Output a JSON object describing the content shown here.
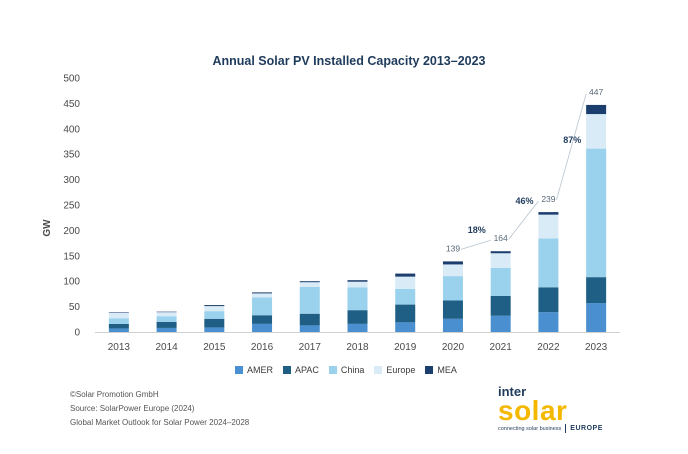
{
  "chart_data": {
    "type": "bar",
    "stacked": true,
    "title": "Annual Solar PV Installed Capacity 2013–2023",
    "xlabel": "",
    "ylabel": "GW",
    "ylim": [
      0,
      500
    ],
    "yticks": [
      0,
      50,
      100,
      150,
      200,
      250,
      300,
      350,
      400,
      450,
      500
    ],
    "categories": [
      "2013",
      "2014",
      "2015",
      "2016",
      "2017",
      "2018",
      "2019",
      "2020",
      "2021",
      "2022",
      "2023"
    ],
    "series": [
      {
        "name": "AMER",
        "color": "#4a90d0",
        "values": [
          7,
          8,
          9,
          16,
          13,
          16,
          19,
          26,
          32,
          39,
          57
        ]
      },
      {
        "name": "APAC",
        "color": "#1f5f85",
        "values": [
          9,
          12,
          17,
          17,
          23,
          27,
          35,
          36,
          39,
          49,
          51
        ]
      },
      {
        "name": "China",
        "color": "#9ad1ec",
        "values": [
          11,
          11,
          15,
          35,
          53,
          45,
          31,
          48,
          55,
          96,
          253
        ]
      },
      {
        "name": "Europe",
        "color": "#d9ebf7",
        "values": [
          11,
          8,
          10,
          8,
          9,
          11,
          24,
          23,
          29,
          47,
          68
        ]
      },
      {
        "name": "MEA",
        "color": "#1c3e6e",
        "values": [
          1,
          1,
          2,
          2,
          2,
          3,
          6,
          6,
          4,
          5,
          18
        ]
      }
    ],
    "totals": [
      {
        "year": "2020",
        "label": "139"
      },
      {
        "year": "2021",
        "label": "164"
      },
      {
        "year": "2022",
        "label": "239"
      },
      {
        "year": "2023",
        "label": "447"
      }
    ],
    "growth_labels": [
      {
        "label": "18%",
        "between": [
          "2020",
          "2021"
        ],
        "at_value": 195
      },
      {
        "label": "46%",
        "between": [
          "2021",
          "2022"
        ],
        "at_value": 252
      },
      {
        "label": "87%",
        "between": [
          "2022",
          "2023"
        ],
        "at_value": 372
      }
    ]
  },
  "footer": {
    "copyright": "©Solar Promotion GmbH",
    "source": "Source: SolarPower Europe (2024)",
    "report": "Global Market Outlook for Solar Power 2024–2028"
  },
  "logo": {
    "top": "inter",
    "main": "solar",
    "tagline": "connecting solar business",
    "region": "EUROPE"
  }
}
